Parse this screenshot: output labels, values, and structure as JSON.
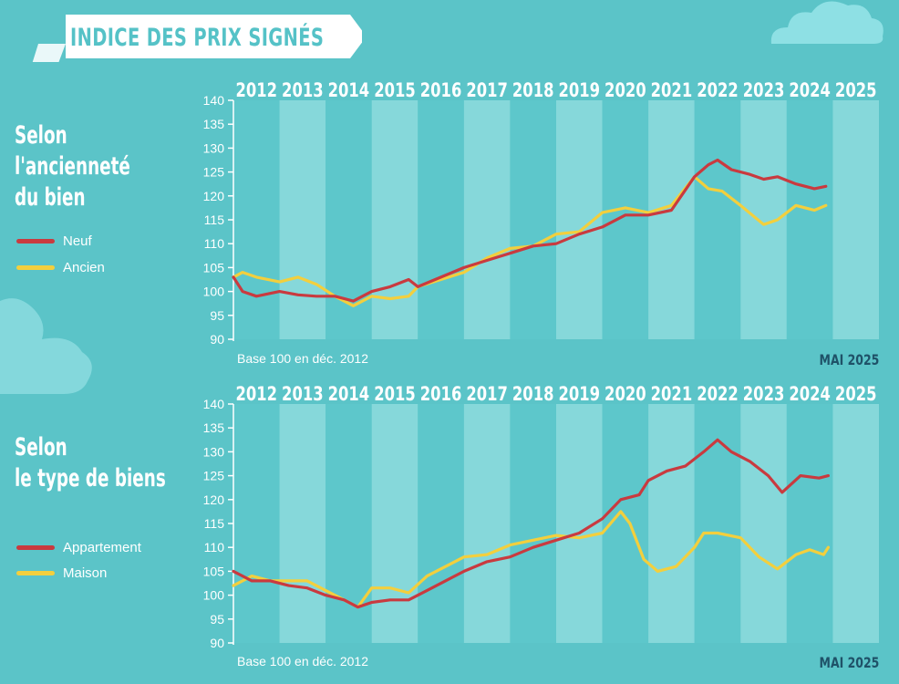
{
  "title": "INDICE DES PRIX SIGNÉS",
  "colors": {
    "background": "#5bc4c8",
    "band_dark": "#5dc7cb",
    "band_light": "#86d8da",
    "neuf": "#c93a3f",
    "ancien": "#f3cf3d",
    "date_note": "#1f5268"
  },
  "charts": [
    {
      "title_lines": [
        "Selon",
        "l'ancienneté",
        "du bien"
      ],
      "legend": [
        {
          "label": "Neuf",
          "color": "#c93a3f"
        },
        {
          "label": "Ancien",
          "color": "#f3cf3d"
        }
      ],
      "base_note": "Base 100 en déc. 2012",
      "date_note": "MAI 2025"
    },
    {
      "title_lines": [
        "Selon",
        "le type de biens"
      ],
      "legend": [
        {
          "label": "Appartement",
          "color": "#c93a3f"
        },
        {
          "label": "Maison",
          "color": "#f3cf3d"
        }
      ],
      "base_note": "Base 100 en déc. 2012",
      "date_note": "MAI 2025"
    }
  ],
  "chart_data": [
    {
      "type": "line",
      "title": "",
      "x_categories": [
        "2012",
        "2013",
        "2014",
        "2015",
        "2016",
        "2017",
        "2018",
        "2019",
        "2020",
        "2021",
        "2022",
        "2023",
        "2024",
        "2025"
      ],
      "ylim": [
        90,
        140
      ],
      "y_ticks": [
        90,
        95,
        100,
        105,
        110,
        115,
        120,
        125,
        130,
        135,
        140
      ],
      "series": [
        {
          "name": "Neuf",
          "color": "#c93a3f",
          "points": [
            [
              2012.0,
              103
            ],
            [
              2012.2,
              100
            ],
            [
              2012.5,
              99
            ],
            [
              2013.0,
              100
            ],
            [
              2013.4,
              99.3
            ],
            [
              2013.8,
              99
            ],
            [
              2014.2,
              99
            ],
            [
              2014.6,
              98
            ],
            [
              2015.0,
              100
            ],
            [
              2015.4,
              101
            ],
            [
              2015.8,
              102.5
            ],
            [
              2016.0,
              101
            ],
            [
              2016.5,
              103
            ],
            [
              2017.0,
              105
            ],
            [
              2017.5,
              106.5
            ],
            [
              2018.0,
              108
            ],
            [
              2018.5,
              109.5
            ],
            [
              2019.0,
              110
            ],
            [
              2019.5,
              112
            ],
            [
              2020.0,
              113.5
            ],
            [
              2020.5,
              116
            ],
            [
              2021.0,
              116
            ],
            [
              2021.5,
              117
            ],
            [
              2022.0,
              124
            ],
            [
              2022.3,
              126.5
            ],
            [
              2022.5,
              127.5
            ],
            [
              2022.8,
              125.5
            ],
            [
              2023.2,
              124.5
            ],
            [
              2023.5,
              123.5
            ],
            [
              2023.8,
              124
            ],
            [
              2024.2,
              122.5
            ],
            [
              2024.6,
              121.5
            ],
            [
              2024.85,
              122
            ]
          ]
        },
        {
          "name": "Ancien",
          "color": "#f3cf3d",
          "points": [
            [
              2012.0,
              103
            ],
            [
              2012.2,
              104
            ],
            [
              2012.5,
              103
            ],
            [
              2013.0,
              102
            ],
            [
              2013.4,
              103
            ],
            [
              2013.8,
              101.5
            ],
            [
              2014.2,
              99
            ],
            [
              2014.6,
              97
            ],
            [
              2015.0,
              99
            ],
            [
              2015.4,
              98.5
            ],
            [
              2015.8,
              99
            ],
            [
              2016.0,
              101
            ],
            [
              2016.5,
              102.5
            ],
            [
              2017.0,
              104
            ],
            [
              2017.5,
              107
            ],
            [
              2018.0,
              109
            ],
            [
              2018.5,
              109.5
            ],
            [
              2019.0,
              112
            ],
            [
              2019.5,
              112.5
            ],
            [
              2020.0,
              116.5
            ],
            [
              2020.5,
              117.5
            ],
            [
              2021.0,
              116.5
            ],
            [
              2021.5,
              118
            ],
            [
              2022.0,
              124
            ],
            [
              2022.3,
              121.5
            ],
            [
              2022.6,
              121
            ],
            [
              2023.0,
              118
            ],
            [
              2023.5,
              114
            ],
            [
              2023.8,
              115
            ],
            [
              2024.2,
              118
            ],
            [
              2024.6,
              117
            ],
            [
              2024.85,
              118
            ]
          ]
        }
      ]
    },
    {
      "type": "line",
      "title": "",
      "x_categories": [
        "2012",
        "2013",
        "2014",
        "2015",
        "2016",
        "2017",
        "2018",
        "2019",
        "2020",
        "2021",
        "2022",
        "2023",
        "2024",
        "2025"
      ],
      "ylim": [
        90,
        140
      ],
      "y_ticks": [
        90,
        95,
        100,
        105,
        110,
        115,
        120,
        125,
        130,
        135,
        140
      ],
      "series": [
        {
          "name": "Appartement",
          "color": "#c93a3f",
          "points": [
            [
              2012.0,
              105
            ],
            [
              2012.4,
              103
            ],
            [
              2012.8,
              103
            ],
            [
              2013.2,
              102
            ],
            [
              2013.6,
              101.5
            ],
            [
              2014.0,
              100
            ],
            [
              2014.4,
              99
            ],
            [
              2014.7,
              97.5
            ],
            [
              2015.0,
              98.5
            ],
            [
              2015.4,
              99
            ],
            [
              2015.8,
              99
            ],
            [
              2016.2,
              101
            ],
            [
              2016.6,
              103
            ],
            [
              2017.0,
              105
            ],
            [
              2017.5,
              107
            ],
            [
              2018.0,
              108
            ],
            [
              2018.5,
              110
            ],
            [
              2019.0,
              111.5
            ],
            [
              2019.5,
              113
            ],
            [
              2020.0,
              116
            ],
            [
              2020.4,
              120
            ],
            [
              2020.8,
              121
            ],
            [
              2021.0,
              124
            ],
            [
              2021.4,
              126
            ],
            [
              2021.8,
              127
            ],
            [
              2022.2,
              130
            ],
            [
              2022.5,
              132.5
            ],
            [
              2022.8,
              130
            ],
            [
              2023.2,
              128
            ],
            [
              2023.6,
              125
            ],
            [
              2023.9,
              121.5
            ],
            [
              2024.3,
              125
            ],
            [
              2024.7,
              124.5
            ],
            [
              2024.9,
              125
            ]
          ]
        },
        {
          "name": "Maison",
          "color": "#f3cf3d",
          "points": [
            [
              2012.0,
              102
            ],
            [
              2012.4,
              104
            ],
            [
              2012.8,
              103
            ],
            [
              2013.2,
              103
            ],
            [
              2013.6,
              103
            ],
            [
              2014.0,
              101
            ],
            [
              2014.4,
              99
            ],
            [
              2014.7,
              97.5
            ],
            [
              2015.0,
              101.5
            ],
            [
              2015.4,
              101.5
            ],
            [
              2015.8,
              100.5
            ],
            [
              2016.2,
              104
            ],
            [
              2016.6,
              106
            ],
            [
              2017.0,
              108
            ],
            [
              2017.5,
              108.5
            ],
            [
              2018.0,
              110.5
            ],
            [
              2018.5,
              111.5
            ],
            [
              2019.0,
              112.5
            ],
            [
              2019.5,
              112
            ],
            [
              2020.0,
              113
            ],
            [
              2020.4,
              117.5
            ],
            [
              2020.6,
              115
            ],
            [
              2020.9,
              107.5
            ],
            [
              2021.2,
              105
            ],
            [
              2021.6,
              106
            ],
            [
              2022.0,
              110
            ],
            [
              2022.2,
              113
            ],
            [
              2022.5,
              113
            ],
            [
              2023.0,
              112
            ],
            [
              2023.4,
              108
            ],
            [
              2023.8,
              105.5
            ],
            [
              2024.2,
              108.5
            ],
            [
              2024.5,
              109.5
            ],
            [
              2024.8,
              108.5
            ],
            [
              2024.9,
              110
            ]
          ]
        }
      ]
    }
  ]
}
